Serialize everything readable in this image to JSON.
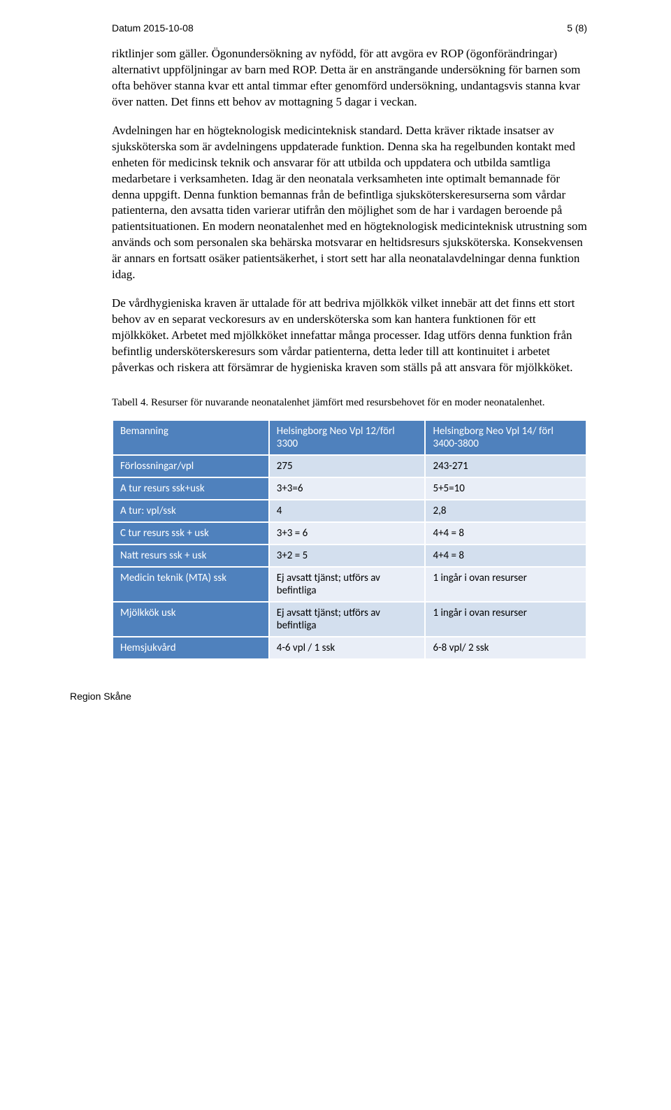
{
  "header": {
    "left": "Datum  2015-10-08",
    "right": "5 (8)"
  },
  "paragraphs": {
    "p1": "riktlinjer som gäller. Ögonundersökning av nyfödd, för att avgöra ev ROP (ögonförändringar) alternativt uppföljningar av barn med ROP. Detta är en ansträngande undersökning för barnen som ofta behöver stanna kvar ett antal timmar efter genomförd undersökning, undantagsvis stanna kvar över natten. Det finns ett behov av mottagning 5 dagar i veckan.",
    "p2": "Avdelningen har en högteknologisk medicinteknisk standard. Detta kräver riktade insatser av sjuksköterska som är avdelningens uppdaterade funktion. Denna ska ha regelbunden kontakt med enheten för medicinsk teknik och ansvarar för att utbilda och uppdatera och utbilda samtliga medarbetare i verksamheten. Idag är den neonatala verksamheten inte optimalt bemannade för denna uppgift. Denna funktion bemannas från de befintliga sjuksköterskeresurserna som vårdar patienterna, den avsatta tiden varierar utifrån den möjlighet som de har i vardagen beroende på patientsituationen. En modern neonatalenhet med en högteknologisk medicinteknisk utrustning som används och som personalen ska behärska motsvarar en heltidsresurs sjuksköterska. Konsekvensen är annars en fortsatt osäker patientsäkerhet, i stort sett har alla neonatalavdelningar denna funktion idag.",
    "p3": "De vårdhygieniska kraven är uttalade för att bedriva mjölkkök vilket innebär att det finns ett stort behov av en separat veckoresurs av en undersköterska som kan hantera funktionen för ett mjölkköket. Arbetet med mjölkköket innefattar många processer. Idag utförs denna funktion från befintlig undersköterskeresurs som vårdar patienterna, detta leder till att kontinuitet i arbetet påverkas och riskera att försämrar de hygieniska kraven som ställs på att ansvara för mjölkköket."
  },
  "table": {
    "caption": "Tabell 4. Resurser för nuvarande neonatalenhet jämfört med resursbehovet för en moder neonatalenhet.",
    "header_bg": "#4f81bd",
    "rowlabel_bg": "#4f81bd",
    "cell_bg": "#d3dfee",
    "cell_bg_alt": "#e9eef7",
    "columns": [
      "Bemanning",
      "Helsingborg Neo Vpl 12/förl 3300",
      "Helsingborg Neo Vpl 14/ förl 3400-3800"
    ],
    "rows": [
      {
        "label": "Förlossningar/vpl",
        "c1": "275",
        "c2": "243-271"
      },
      {
        "label": "A tur resurs ssk+usk",
        "c1": "3+3=6",
        "c2": "5+5=10"
      },
      {
        "label": "A tur: vpl/ssk",
        "c1": "4",
        "c2": "2,8"
      },
      {
        "label": "C tur resurs ssk + usk",
        "c1": "3+3 = 6",
        "c2": "4+4 = 8"
      },
      {
        "label": "Natt resurs ssk + usk",
        "c1": "3+2 = 5",
        "c2": "4+4 = 8"
      },
      {
        "label": "Medicin teknik (MTA) ssk",
        "c1": "Ej avsatt tjänst; utförs av befintliga",
        "c2": "1 ingår i ovan resurser"
      },
      {
        "label": "Mjölkkök usk",
        "c1": "Ej avsatt tjänst; utförs av befintliga",
        "c2": "1 ingår i ovan resurser"
      },
      {
        "label": "Hemsjukvård",
        "c1": "4-6 vpl / 1 ssk",
        "c2": "6-8 vpl/ 2 ssk"
      }
    ]
  },
  "footer": "Region Skåne"
}
